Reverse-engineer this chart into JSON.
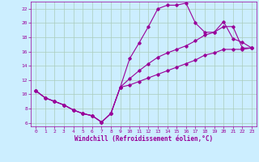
{
  "xlabel": "Windchill (Refroidissement éolien,°C)",
  "bg_color": "#cceeff",
  "line_color": "#990099",
  "grid_color": "#aaccbb",
  "xlim": [
    -0.5,
    23.5
  ],
  "ylim": [
    5.5,
    23
  ],
  "xticks": [
    0,
    1,
    2,
    3,
    4,
    5,
    6,
    7,
    8,
    9,
    10,
    11,
    12,
    13,
    14,
    15,
    16,
    17,
    18,
    19,
    20,
    21,
    22,
    23
  ],
  "yticks": [
    6,
    8,
    10,
    12,
    14,
    16,
    18,
    20,
    22
  ],
  "line1_x": [
    0,
    1,
    2,
    3,
    4,
    5,
    6,
    7,
    8,
    9,
    10,
    11,
    12,
    13,
    14,
    15,
    16,
    17,
    18,
    19,
    20,
    21,
    22,
    23
  ],
  "line1_y": [
    10.5,
    9.5,
    9.0,
    8.5,
    7.8,
    7.3,
    7.0,
    6.1,
    7.3,
    11.0,
    15.0,
    17.2,
    19.5,
    22.0,
    22.5,
    22.5,
    22.8,
    20.0,
    18.7,
    18.7,
    20.2,
    17.8,
    17.3,
    16.5
  ],
  "line2_x": [
    0,
    1,
    2,
    3,
    4,
    5,
    6,
    7,
    8,
    9,
    10,
    11,
    12,
    13,
    14,
    15,
    16,
    17,
    18,
    19,
    20,
    21,
    22,
    23
  ],
  "line2_y": [
    10.5,
    9.5,
    9.0,
    8.5,
    7.8,
    7.3,
    7.0,
    6.1,
    7.3,
    11.0,
    12.2,
    13.3,
    14.3,
    15.2,
    15.8,
    16.3,
    16.8,
    17.5,
    18.3,
    18.7,
    19.5,
    19.5,
    16.5,
    16.5
  ],
  "line3_x": [
    0,
    1,
    2,
    3,
    4,
    5,
    6,
    7,
    8,
    9,
    10,
    11,
    12,
    13,
    14,
    15,
    16,
    17,
    18,
    19,
    20,
    21,
    22,
    23
  ],
  "line3_y": [
    10.5,
    9.5,
    9.0,
    8.5,
    7.8,
    7.3,
    7.0,
    6.1,
    7.3,
    11.0,
    11.3,
    11.8,
    12.3,
    12.8,
    13.3,
    13.8,
    14.3,
    14.8,
    15.5,
    15.8,
    16.3,
    16.3,
    16.3,
    16.5
  ]
}
